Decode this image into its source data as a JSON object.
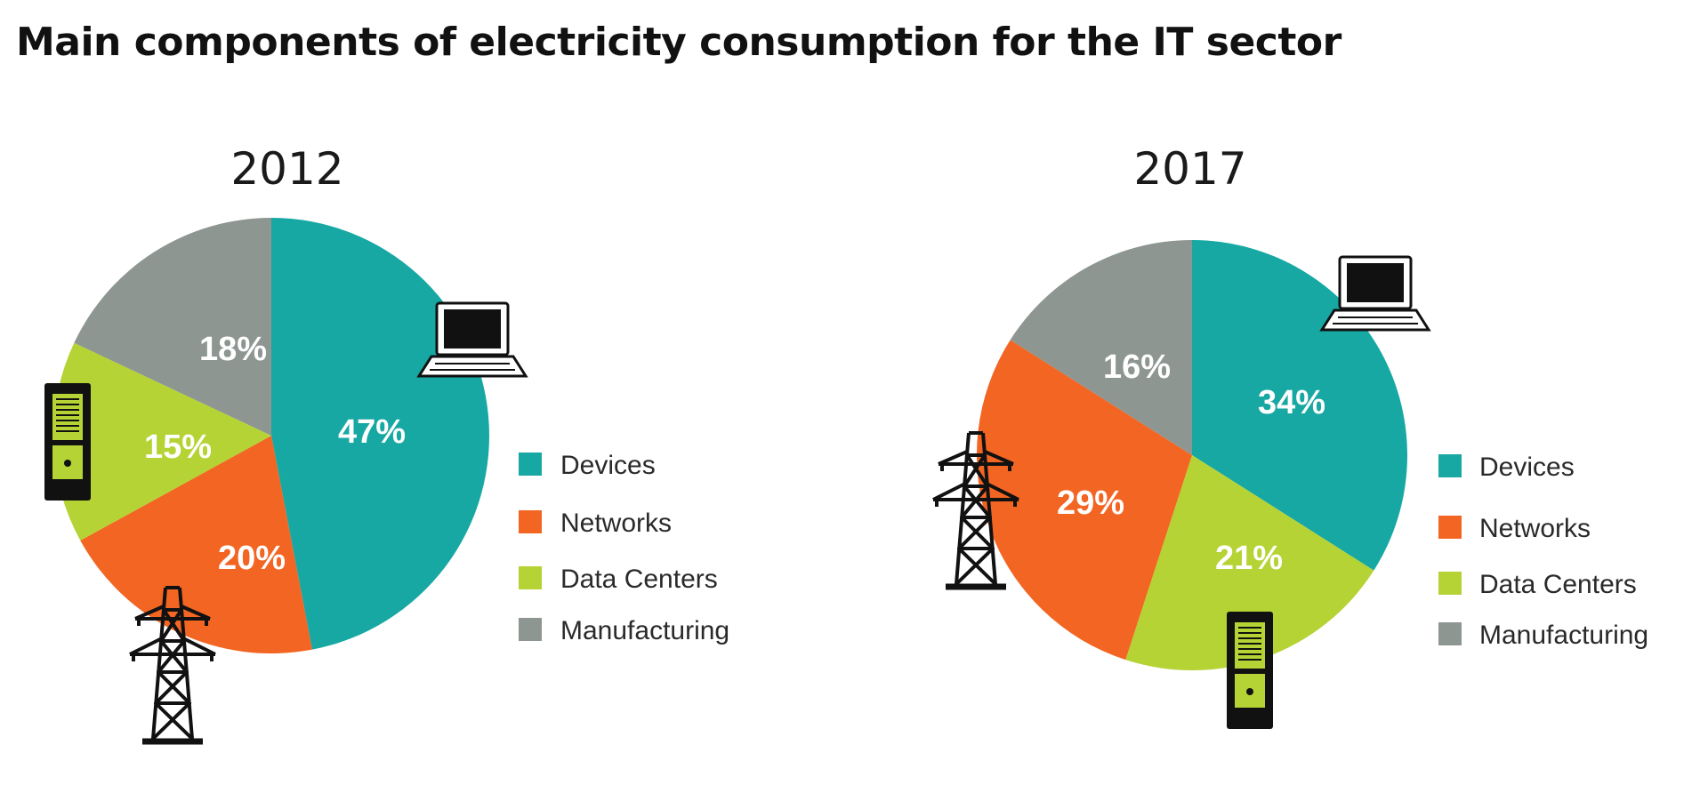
{
  "title": "Main components of electricity consumption for the IT sector",
  "colors": {
    "Devices": "#17a8a4",
    "Networks": "#f26522",
    "Data Centers": "#b5d334",
    "Manufacturing": "#8e9692"
  },
  "chart_data": [
    {
      "type": "pie",
      "title": "2012",
      "categories": [
        "Devices",
        "Networks",
        "Data Centers",
        "Manufacturing"
      ],
      "values": [
        47,
        20,
        15,
        18
      ],
      "labels": [
        "47%",
        "20%",
        "15%",
        "18%"
      ],
      "legend": [
        "Devices",
        "Networks",
        "Data Centers",
        "Manufacturing"
      ],
      "legend_position": "right",
      "icons": [
        "laptop-icon",
        "power-tower-icon",
        "server-icon"
      ]
    },
    {
      "type": "pie",
      "title": "2017",
      "categories": [
        "Devices",
        "Data Centers",
        "Networks",
        "Manufacturing"
      ],
      "values": [
        34,
        21,
        29,
        16
      ],
      "labels": [
        "34%",
        "21%",
        "29%",
        "16%"
      ],
      "legend": [
        "Devices",
        "Networks",
        "Data Centers",
        "Manufacturing"
      ],
      "legend_position": "right",
      "icons": [
        "laptop-icon",
        "server-icon",
        "power-tower-icon"
      ]
    }
  ]
}
